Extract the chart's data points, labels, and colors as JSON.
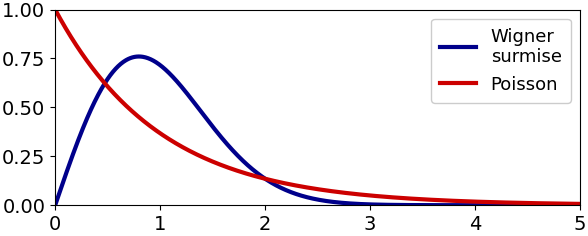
{
  "title": "",
  "xlabel": "",
  "ylabel": "",
  "xlim": [
    0,
    5
  ],
  "ylim": [
    0,
    1.0
  ],
  "yticks": [
    0.0,
    0.25,
    0.5,
    0.75,
    1.0
  ],
  "xticks": [
    0,
    1,
    2,
    3,
    4,
    5
  ],
  "wigner_color": "#00008B",
  "poisson_color": "#CC0000",
  "linewidth": 3.0,
  "legend_labels": [
    "Wigner\nsurmise",
    "Poisson"
  ],
  "legend_fontsize": 13,
  "tick_fontsize": 14,
  "background_color": "#ffffff"
}
